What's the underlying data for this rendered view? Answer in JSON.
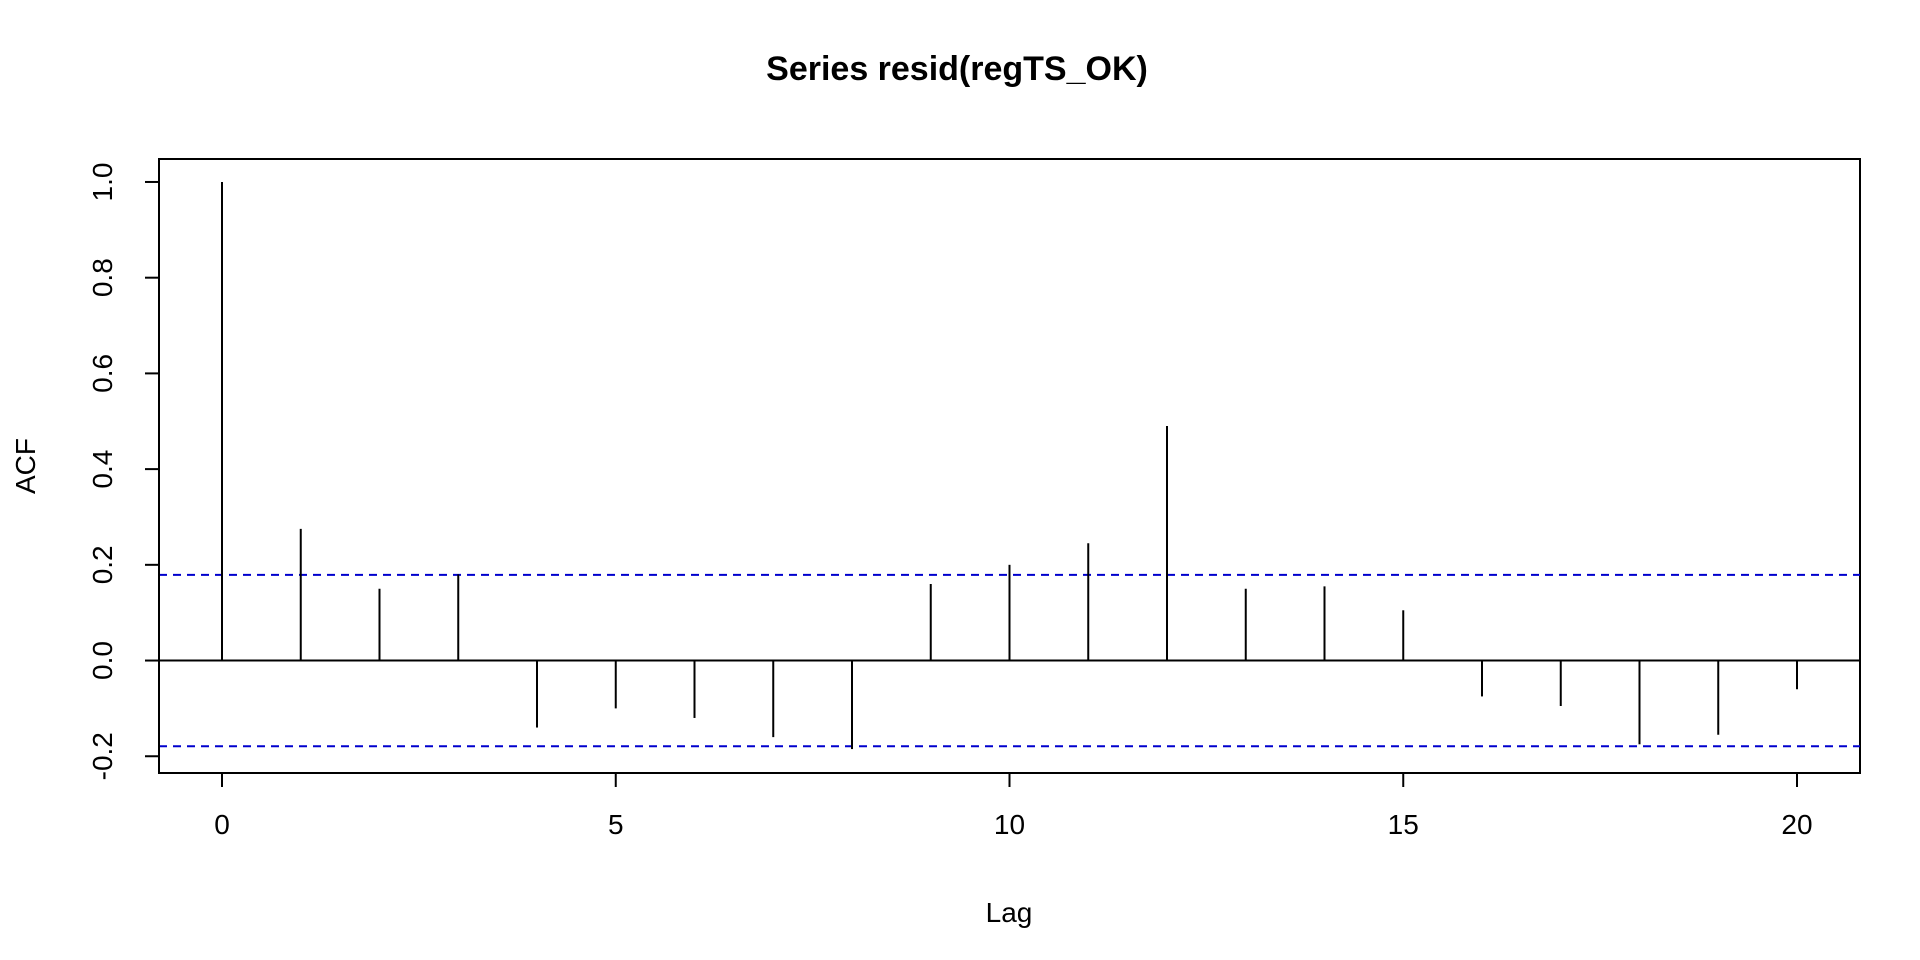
{
  "chart_data": {
    "type": "bar",
    "title": "Series  resid(regTS_OK)",
    "xlabel": "Lag",
    "ylabel": "ACF",
    "x": [
      0,
      1,
      2,
      3,
      4,
      5,
      6,
      7,
      8,
      9,
      10,
      11,
      12,
      13,
      14,
      15,
      16,
      17,
      18,
      19,
      20
    ],
    "values": [
      1.0,
      0.275,
      0.15,
      0.18,
      -0.14,
      -0.1,
      -0.12,
      -0.16,
      -0.185,
      0.16,
      0.2,
      0.245,
      0.49,
      0.15,
      0.155,
      0.105,
      -0.075,
      -0.095,
      -0.175,
      -0.155,
      -0.06
    ],
    "confidence_bound": 0.179,
    "xlim": [
      -0.8,
      20.8
    ],
    "ylim": [
      -0.235,
      1.048
    ],
    "x_ticks": [
      0,
      5,
      10,
      15,
      20
    ],
    "x_tick_labels": [
      "0",
      "5",
      "10",
      "15",
      "20"
    ],
    "y_ticks": [
      -0.2,
      0.0,
      0.2,
      0.4,
      0.6,
      0.8,
      1.0
    ],
    "y_tick_labels": [
      "-0.2",
      "0.0",
      "0.2",
      "0.4",
      "0.6",
      "0.8",
      "1.0"
    ],
    "grid": false,
    "colors": {
      "bars": "#000000",
      "confidence": "#0000CD",
      "axes": "#000000"
    }
  }
}
